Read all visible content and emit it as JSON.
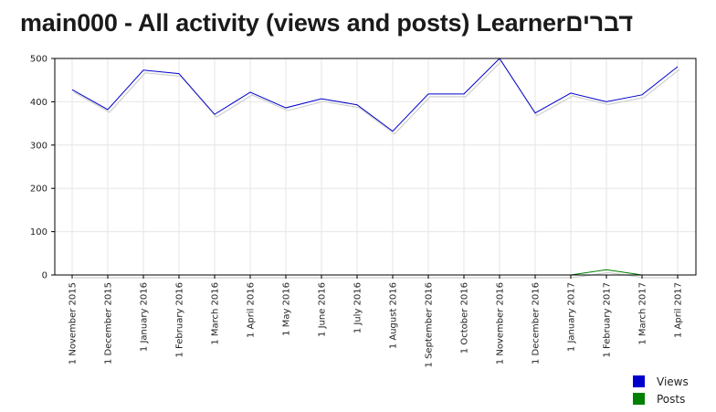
{
  "page_title": "main000 - All activity (views and posts) Learnerדברים",
  "chart_data": {
    "type": "line",
    "title": "main000 - All activity (views and posts) Learnerדברים",
    "x": [
      "1 November 2015",
      "1 December 2015",
      "1 January 2016",
      "1 February 2016",
      "1 March 2016",
      "1 April 2016",
      "1 May 2016",
      "1 June 2016",
      "1 July 2016",
      "1 August 2016",
      "1 September 2016",
      "1 October 2016",
      "1 November 2016",
      "1 December 2016",
      "1 January 2017",
      "1 February 2017",
      "1 March 2017",
      "1 April 2017"
    ],
    "series": [
      {
        "name": "Views",
        "color": "#0000cc",
        "values": [
          428,
          382,
          473,
          465,
          371,
          422,
          386,
          407,
          393,
          332,
          418,
          418,
          500,
          374,
          420,
          400,
          416,
          481
        ]
      },
      {
        "name": "Posts",
        "color": "#008000",
        "values": [
          0,
          0,
          0,
          0,
          0,
          0,
          0,
          0,
          0,
          0,
          0,
          0,
          0,
          0,
          0,
          12,
          0,
          0
        ]
      }
    ],
    "ylim": [
      0,
      500
    ],
    "yticks": [
      0,
      100,
      200,
      300,
      400,
      500
    ],
    "grid": true,
    "legend_position": "bottom-right",
    "xlabel": "",
    "ylabel": ""
  }
}
